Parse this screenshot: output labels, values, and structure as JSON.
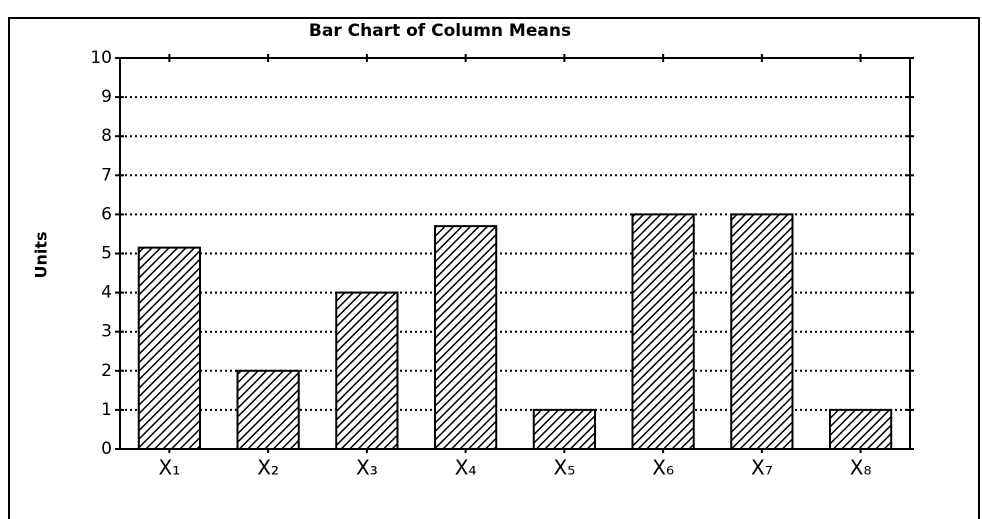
{
  "chart_data": {
    "type": "bar",
    "title": "Bar Chart of Column Means",
    "y_label": "Units",
    "categories": [
      "X₁",
      "X₂",
      "X₃",
      "X₄",
      "X₅",
      "X₆",
      "X₇",
      "X₈"
    ],
    "values": [
      5.15,
      2,
      4,
      5.7,
      1,
      6,
      6,
      1
    ],
    "color": "#000000",
    "ylim": [
      0,
      10
    ],
    "yticks": [
      0,
      1,
      2,
      3,
      4,
      5,
      6,
      7,
      8,
      9,
      10
    ],
    "grid": true
  }
}
